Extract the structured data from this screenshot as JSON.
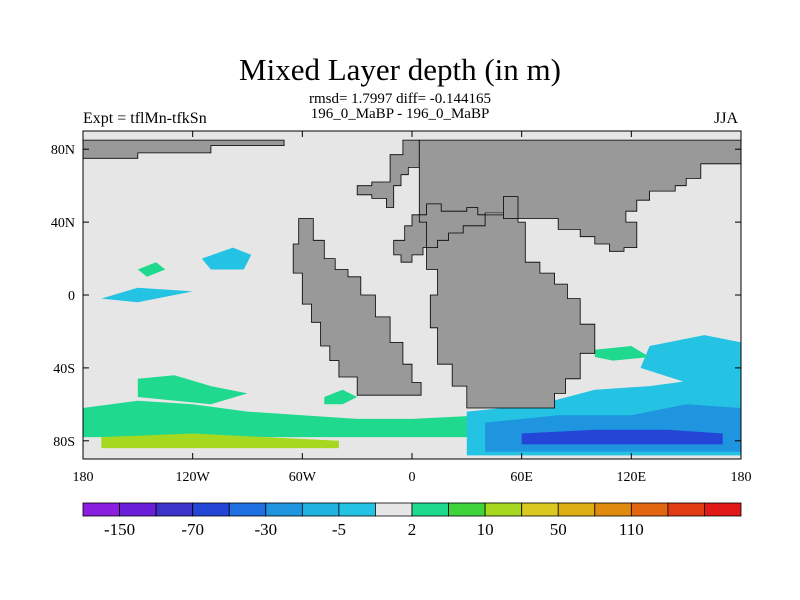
{
  "title": "Mixed Layer depth (in m)",
  "subtitle_stats": "rmsd= 1.7997 diff= -0.144165",
  "subtitle_runs": "196_0_MaBP - 196_0_MaBP",
  "left_string": "Expt = tflMn-tfkSn",
  "right_string": "JJA",
  "colors": {
    "land": "#999999",
    "ocean_zero": "#e6e6e6",
    "border": "#000000"
  },
  "chart_data": {
    "type": "heatmap",
    "projection": "cylindrical-equidistant",
    "xlim": [
      -180,
      180
    ],
    "ylim": [
      -90,
      90
    ],
    "x_ticks": [
      {
        "value": -180,
        "label": "180"
      },
      {
        "value": -120,
        "label": "120W"
      },
      {
        "value": -60,
        "label": "60W"
      },
      {
        "value": 0,
        "label": "0"
      },
      {
        "value": 60,
        "label": "60E"
      },
      {
        "value": 120,
        "label": "120E"
      },
      {
        "value": 180,
        "label": "180"
      }
    ],
    "y_ticks": [
      {
        "value": 80,
        "label": "80N"
      },
      {
        "value": 40,
        "label": "40N"
      },
      {
        "value": 0,
        "label": "0"
      },
      {
        "value": -40,
        "label": "40S"
      },
      {
        "value": -80,
        "label": "80S"
      }
    ],
    "colorbar": {
      "colors": [
        "#8a1fe0",
        "#6a1fd8",
        "#3c33c9",
        "#2346d6",
        "#1e6fe0",
        "#1f95e0",
        "#22b2e2",
        "#24c3e4",
        "#e6e6e6",
        "#1fd98e",
        "#3fd33c",
        "#a6d81f",
        "#d8c81f",
        "#dcae12",
        "#e08a0e",
        "#e26510",
        "#e03b12",
        "#e01818"
      ],
      "labels": [
        {
          "after_box": 1,
          "text": "-150"
        },
        {
          "after_box": 3,
          "text": "-70"
        },
        {
          "after_box": 5,
          "text": "-30"
        },
        {
          "after_box": 7,
          "text": "-5"
        },
        {
          "after_box": 9,
          "text": "2"
        },
        {
          "after_box": 11,
          "text": "10"
        },
        {
          "after_box": 13,
          "text": "50"
        },
        {
          "after_box": 15,
          "text": "110"
        }
      ]
    },
    "land_masses": [
      {
        "name": "western-continent",
        "outline": [
          [
            -62,
            42
          ],
          [
            -54,
            42
          ],
          [
            -54,
            30
          ],
          [
            -48,
            30
          ],
          [
            -48,
            20
          ],
          [
            -42,
            20
          ],
          [
            -42,
            14
          ],
          [
            -35,
            14
          ],
          [
            -35,
            10
          ],
          [
            -28,
            10
          ],
          [
            -28,
            0
          ],
          [
            -20,
            0
          ],
          [
            -20,
            -12
          ],
          [
            -12,
            -12
          ],
          [
            -12,
            -26
          ],
          [
            -5,
            -26
          ],
          [
            -5,
            -38
          ],
          [
            0,
            -38
          ],
          [
            0,
            -48
          ],
          [
            5,
            -48
          ],
          [
            5,
            -55
          ],
          [
            -30,
            -55
          ],
          [
            -30,
            -45
          ],
          [
            -40,
            -45
          ],
          [
            -40,
            -36
          ],
          [
            -45,
            -36
          ],
          [
            -45,
            -28
          ],
          [
            -50,
            -28
          ],
          [
            -50,
            -15
          ],
          [
            -55,
            -15
          ],
          [
            -55,
            -5
          ],
          [
            -60,
            -5
          ],
          [
            -60,
            12
          ],
          [
            -65,
            12
          ],
          [
            -65,
            28
          ],
          [
            -62,
            28
          ]
        ]
      },
      {
        "name": "western-continent-north",
        "outline": [
          [
            -30,
            55
          ],
          [
            -22,
            55
          ],
          [
            -22,
            53
          ],
          [
            -14,
            53
          ],
          [
            -14,
            48
          ],
          [
            -10,
            48
          ],
          [
            -10,
            60
          ],
          [
            -6,
            60
          ],
          [
            -6,
            66
          ],
          [
            -2,
            66
          ],
          [
            -2,
            70
          ],
          [
            4,
            70
          ],
          [
            4,
            85
          ],
          [
            -5,
            85
          ],
          [
            -5,
            77
          ],
          [
            -12,
            77
          ],
          [
            -12,
            62
          ],
          [
            -22,
            62
          ],
          [
            -22,
            60
          ],
          [
            -30,
            60
          ]
        ]
      },
      {
        "name": "eastern-continent",
        "outline": [
          [
            4,
            85
          ],
          [
            180,
            85
          ],
          [
            180,
            72
          ],
          [
            158,
            72
          ],
          [
            158,
            64
          ],
          [
            150,
            64
          ],
          [
            150,
            60
          ],
          [
            144,
            60
          ],
          [
            144,
            57
          ],
          [
            130,
            57
          ],
          [
            130,
            52
          ],
          [
            123,
            52
          ],
          [
            123,
            46
          ],
          [
            117,
            46
          ],
          [
            117,
            40
          ],
          [
            123,
            40
          ],
          [
            123,
            26
          ],
          [
            116,
            26
          ],
          [
            116,
            24
          ],
          [
            108,
            24
          ],
          [
            108,
            28
          ],
          [
            100,
            28
          ],
          [
            100,
            32
          ],
          [
            92,
            32
          ],
          [
            92,
            36
          ],
          [
            80,
            36
          ],
          [
            80,
            42
          ],
          [
            50,
            42
          ],
          [
            50,
            45
          ],
          [
            40,
            45
          ],
          [
            40,
            38
          ],
          [
            28,
            38
          ],
          [
            28,
            34
          ],
          [
            20,
            34
          ],
          [
            20,
            30
          ],
          [
            14,
            30
          ],
          [
            14,
            26
          ],
          [
            6,
            26
          ],
          [
            6,
            22
          ],
          [
            0,
            22
          ],
          [
            0,
            18
          ],
          [
            -6,
            18
          ],
          [
            -6,
            22
          ],
          [
            -10,
            22
          ],
          [
            -10,
            30
          ],
          [
            -4,
            30
          ],
          [
            -4,
            38
          ],
          [
            0,
            38
          ],
          [
            0,
            44
          ],
          [
            8,
            44
          ],
          [
            8,
            50
          ],
          [
            16,
            50
          ],
          [
            16,
            46
          ],
          [
            30,
            46
          ],
          [
            30,
            48
          ],
          [
            36,
            48
          ],
          [
            36,
            44
          ],
          [
            50,
            44
          ],
          [
            50,
            54
          ],
          [
            58,
            54
          ],
          [
            58,
            40
          ],
          [
            62,
            40
          ],
          [
            62,
            18
          ],
          [
            70,
            18
          ],
          [
            70,
            12
          ],
          [
            78,
            12
          ],
          [
            78,
            6
          ],
          [
            85,
            6
          ],
          [
            85,
            -2
          ],
          [
            92,
            -2
          ],
          [
            92,
            -16
          ],
          [
            100,
            -16
          ],
          [
            100,
            -32
          ],
          [
            92,
            -32
          ],
          [
            92,
            -46
          ],
          [
            84,
            -46
          ],
          [
            84,
            -54
          ],
          [
            78,
            -54
          ],
          [
            78,
            -62
          ],
          [
            30,
            -62
          ],
          [
            30,
            -50
          ],
          [
            22,
            -50
          ],
          [
            22,
            -38
          ],
          [
            14,
            -38
          ],
          [
            14,
            -18
          ],
          [
            10,
            -18
          ],
          [
            10,
            0
          ],
          [
            14,
            0
          ],
          [
            14,
            14
          ],
          [
            8,
            14
          ],
          [
            8,
            40
          ],
          [
            4,
            40
          ]
        ]
      },
      {
        "name": "polar-north-west",
        "outline": [
          [
            -180,
            85
          ],
          [
            -70,
            85
          ],
          [
            -70,
            82
          ],
          [
            -110,
            82
          ],
          [
            -110,
            78
          ],
          [
            -150,
            78
          ],
          [
            -150,
            75
          ],
          [
            -180,
            75
          ]
        ]
      }
    ],
    "anomaly_patches": [
      {
        "value": "2 to 10",
        "color": "#1fd98e",
        "outline": [
          [
            -180,
            -62
          ],
          [
            -150,
            -58
          ],
          [
            -120,
            -60
          ],
          [
            -90,
            -64
          ],
          [
            -60,
            -66
          ],
          [
            -30,
            -68
          ],
          [
            0,
            -68
          ],
          [
            40,
            -66
          ],
          [
            60,
            -70
          ],
          [
            80,
            -62
          ],
          [
            95,
            -56
          ],
          [
            120,
            -58
          ],
          [
            150,
            -56
          ],
          [
            180,
            -60
          ],
          [
            180,
            -78
          ],
          [
            -180,
            -78
          ]
        ]
      },
      {
        "value": "-5 to -2",
        "color": "#24c3e4",
        "outline": [
          [
            30,
            -64
          ],
          [
            70,
            -60
          ],
          [
            100,
            -52
          ],
          [
            130,
            -50
          ],
          [
            160,
            -46
          ],
          [
            180,
            -44
          ],
          [
            180,
            -88
          ],
          [
            30,
            -88
          ]
        ]
      },
      {
        "value": "-30 to -5",
        "color": "#1f95e0",
        "outline": [
          [
            40,
            -70
          ],
          [
            80,
            -66
          ],
          [
            120,
            -66
          ],
          [
            150,
            -60
          ],
          [
            180,
            -62
          ],
          [
            180,
            -86
          ],
          [
            40,
            -86
          ]
        ]
      },
      {
        "value": "-70 to -30",
        "color": "#2346d6",
        "outline": [
          [
            60,
            -76
          ],
          [
            100,
            -74
          ],
          [
            140,
            -74
          ],
          [
            170,
            -76
          ],
          [
            170,
            -82
          ],
          [
            60,
            -82
          ]
        ]
      },
      {
        "value": "10 to 50",
        "color": "#a6d81f",
        "outline": [
          [
            -170,
            -78
          ],
          [
            -120,
            -76
          ],
          [
            -80,
            -78
          ],
          [
            -40,
            -80
          ],
          [
            -40,
            -84
          ],
          [
            -170,
            -84
          ]
        ]
      },
      {
        "value": "2 to 10",
        "color": "#1fd98e",
        "outline": [
          [
            -150,
            -46
          ],
          [
            -130,
            -44
          ],
          [
            -110,
            -50
          ],
          [
            -90,
            -54
          ],
          [
            -110,
            -60
          ],
          [
            -150,
            -56
          ]
        ]
      },
      {
        "value": "-5 to -2",
        "color": "#24c3e4",
        "outline": [
          [
            -115,
            20
          ],
          [
            -98,
            26
          ],
          [
            -88,
            22
          ],
          [
            -92,
            14
          ],
          [
            -110,
            14
          ]
        ]
      },
      {
        "value": "2 to 10",
        "color": "#1fd98e",
        "outline": [
          [
            -150,
            14
          ],
          [
            -140,
            18
          ],
          [
            -135,
            14
          ],
          [
            -145,
            10
          ]
        ]
      },
      {
        "value": "-5 to -2",
        "color": "#24c3e4",
        "outline": [
          [
            -170,
            -2
          ],
          [
            -150,
            4
          ],
          [
            -120,
            2
          ],
          [
            -150,
            -4
          ]
        ]
      },
      {
        "value": "-5 to -2",
        "color": "#24c3e4",
        "outline": [
          [
            130,
            -28
          ],
          [
            160,
            -22
          ],
          [
            180,
            -26
          ],
          [
            180,
            -50
          ],
          [
            150,
            -48
          ],
          [
            125,
            -40
          ]
        ]
      },
      {
        "value": "2 to 10",
        "color": "#1fd98e",
        "outline": [
          [
            -48,
            -56
          ],
          [
            -38,
            -52
          ],
          [
            -30,
            -56
          ],
          [
            -38,
            -60
          ],
          [
            -48,
            -60
          ]
        ]
      },
      {
        "value": "2 to 10",
        "color": "#1fd98e",
        "outline": [
          [
            100,
            -30
          ],
          [
            120,
            -28
          ],
          [
            130,
            -34
          ],
          [
            110,
            -36
          ],
          [
            100,
            -34
          ]
        ]
      }
    ]
  }
}
